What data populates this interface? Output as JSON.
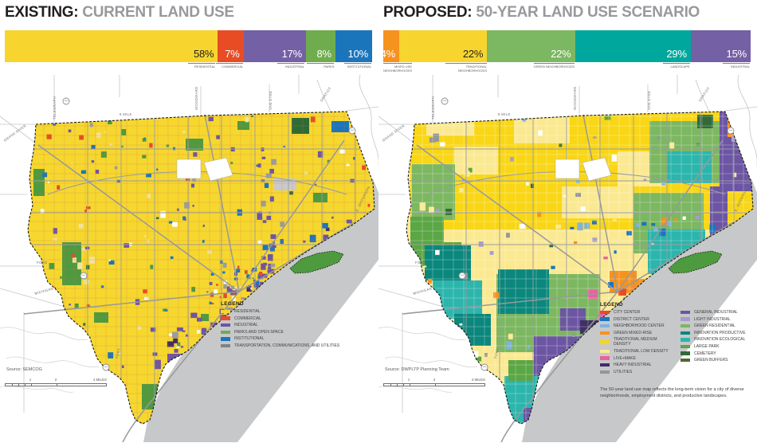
{
  "panels": [
    {
      "id": "existing",
      "title_strong": "EXISTING:",
      "title_rest": "CURRENT LAND USE",
      "source": "Source: SEMCOG",
      "legend_title": "LEGEND",
      "legend": [
        {
          "color": "#F7D52E",
          "label": "RESIDENTIAL"
        },
        {
          "color": "#E74C25",
          "label": "COMMERCIAL"
        },
        {
          "color": "#6C55A3",
          "label": "INDUSTRIAL"
        },
        {
          "color": "#6FAC4D",
          "label": "PARKS AND OPEN SPACE"
        },
        {
          "color": "#1B75BB",
          "label": "INSTITUTIONAL"
        },
        {
          "color": "#808285",
          "label": "TRANSPORTATION, COMMUNICATIONS, AND UTILITIES"
        }
      ]
    },
    {
      "id": "proposed",
      "title_strong": "PROPOSED:",
      "title_rest": "50-YEAR LAND USE SCENARIO",
      "source": "Source: DWPLTP Planning Team",
      "legend_title": "LEGEND",
      "legend_col1": [
        {
          "color": "#E74C25",
          "label": "CITY CENTER"
        },
        {
          "color": "#1B75BB",
          "label": "DISTRICT CENTER"
        },
        {
          "color": "#7FB2DE",
          "label": "NEIGHBORHOOD CENTER"
        },
        {
          "color": "#F6921E",
          "label": "GREEN MIXED-RISE"
        },
        {
          "color": "#F9D616",
          "label": "TRADITIONAL MEDIUM DENSITY"
        },
        {
          "color": "#FBE992",
          "label": "TRADITIONAL LOW DENSITY"
        },
        {
          "color": "#EC5FA1",
          "label": "LIVE+MAKE"
        },
        {
          "color": "#413064",
          "label": "HEAVY INDUSTRIAL"
        },
        {
          "color": "#939598",
          "label": "UTILITIES"
        }
      ],
      "legend_col2": [
        {
          "color": "#6C55A3",
          "label": "GENERAL INDUSTRIAL"
        },
        {
          "color": "#A79BCE",
          "label": "LIGHT INDUSTRIAL"
        },
        {
          "color": "#7CB761",
          "label": "GREEN RESIDENTIAL"
        },
        {
          "color": "#0B877D",
          "label": "INNOVATION PRODUCTIVE"
        },
        {
          "color": "#2CB5AC",
          "label": "INNOVATION ECOLOGICAL"
        },
        {
          "color": "#5BA645",
          "label": "LARGE PARK"
        },
        {
          "color": "#316A38",
          "label": "CEMETERY"
        },
        {
          "color": "#51682E",
          "label": "GREEN BUFFERS"
        }
      ],
      "caption": "The 50-year land use map reflects the long-term vision for a city of diverse neighborhoods, employment districts, and productive landscapes."
    }
  ],
  "chart_data": [
    {
      "type": "bar",
      "subtype": "horizontal-stacked",
      "title": "EXISTING: CURRENT LAND USE",
      "unit": "%",
      "categories": [
        "RESIDENTIAL",
        "COMMERCIAL",
        "INDUSTRIAL",
        "PARKS",
        "INSTITUTIONAL"
      ],
      "values": [
        58,
        7,
        17,
        8,
        10
      ],
      "colors": [
        "#F7D52E",
        "#E74C25",
        "#7460A5",
        "#6FAC4D",
        "#1B75BB"
      ],
      "label_colors": [
        "#231F20",
        "#FFFFFF",
        "#FFFFFF",
        "#FFFFFF",
        "#FFFFFF"
      ]
    },
    {
      "type": "bar",
      "subtype": "horizontal-stacked",
      "title": "PROPOSED: 50-YEAR LAND USE SCENARIO",
      "unit": "%",
      "categories": [
        "MIXED USE NEIGHBORHOODS",
        "TRADITIONAL NEIGHBORHOODS",
        "GREEN NEIGHBORHOODS",
        "LANDSCAPE",
        "INDUSTRIAL"
      ],
      "values": [
        4,
        22,
        22,
        29,
        15
      ],
      "colors": [
        "#F6921E",
        "#F7D52E",
        "#7CB761",
        "#00A79D",
        "#7460A5"
      ],
      "label_colors": [
        "#FFFFFF",
        "#231F20",
        "#FFFFFF",
        "#FFFFFF",
        "#FFFFFF"
      ]
    }
  ],
  "scale_bar": {
    "ticks": [
      "1",
      "2"
    ],
    "end_label": "4 MILES"
  },
  "road_labels": {
    "eight_mile": "8 MILE",
    "telegraph": "TELEGRAPH",
    "woodward": "WOODWARD",
    "van_dyke": "VAN DYKE",
    "gratiot": "GRATIOT",
    "grand_river": "GRAND RIVER",
    "ford": "FORD",
    "michigan": "MICHIGAN",
    "jefferson": "E. JEFFERSON",
    "fort": "FORT"
  },
  "map_colors": {
    "river": "#C7C8CA",
    "existing_base": "#F6D72E",
    "proposed_base": "#FBE992",
    "boundary": "#1A1A1A"
  }
}
